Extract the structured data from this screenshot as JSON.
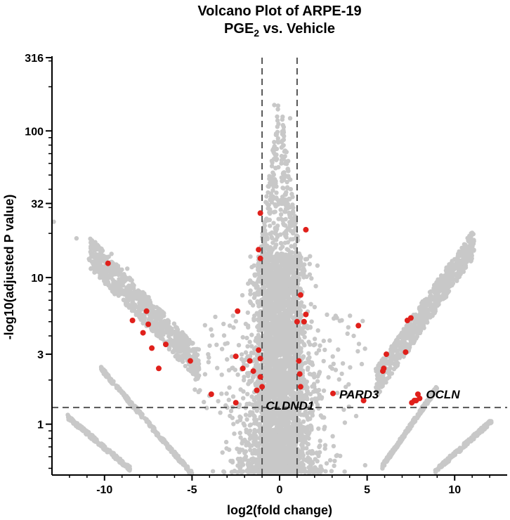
{
  "chart_data": {
    "type": "scatter",
    "title_line1": "Volcano Plot of ARPE-19",
    "title_line2_main": "PGE",
    "title_line2_sub": "2",
    "title_line2_rest": " vs. Vehicle",
    "xlabel": "log2(fold change)",
    "ylabel": "-log10(adjusted P value)",
    "xlim": [
      -13,
      13
    ],
    "ylim": [
      0.45,
      316
    ],
    "y_scale": "log",
    "x_ticks": [
      -10,
      -5,
      0,
      5,
      10
    ],
    "x_tick_labels": [
      "-10",
      "-5",
      "0",
      "5",
      "10"
    ],
    "y_ticks": [
      1,
      3,
      10,
      32,
      100,
      316
    ],
    "y_tick_labels": [
      "1",
      "3",
      "10",
      "32",
      "100",
      "316"
    ],
    "thresholds": {
      "x": [
        -1,
        1
      ],
      "y": 1.3
    },
    "colors": {
      "background": "#c8c8c8",
      "highlight": "#e0201b",
      "threshold": "#555555",
      "axis": "#000000"
    },
    "annotations": [
      {
        "label": "CLDND1",
        "x": -0.95,
        "y": 1.34
      },
      {
        "label": "PARD3",
        "x": 3.25,
        "y": 1.6
      },
      {
        "label": "OCLN",
        "x": 8.2,
        "y": 1.6
      }
    ],
    "highlighted": [
      [
        -9.8,
        12.5
      ],
      [
        -8.4,
        5.1
      ],
      [
        -7.6,
        5.9
      ],
      [
        -7.5,
        4.8
      ],
      [
        -7.8,
        4.2
      ],
      [
        -7.3,
        3.3
      ],
      [
        -6.9,
        2.4
      ],
      [
        -6.5,
        3.5
      ],
      [
        -5.1,
        2.7
      ],
      [
        -3.9,
        1.6
      ],
      [
        -2.5,
        2.9
      ],
      [
        -2.4,
        5.9
      ],
      [
        -2.1,
        2.4
      ],
      [
        -1.7,
        2.7
      ],
      [
        -1.5,
        2.3
      ],
      [
        -1.3,
        1.7
      ],
      [
        -1.2,
        3.2
      ],
      [
        -1.1,
        2.8
      ],
      [
        -1.1,
        2.1
      ],
      [
        -1.0,
        1.8
      ],
      [
        -1.2,
        15.5
      ],
      [
        -1.1,
        13.5
      ],
      [
        -1.1,
        27.5
      ],
      [
        -2.5,
        1.4
      ],
      [
        1.0,
        5.0
      ],
      [
        1.1,
        2.7
      ],
      [
        1.15,
        2.2
      ],
      [
        1.2,
        1.8
      ],
      [
        1.2,
        7.6
      ],
      [
        1.5,
        5.6
      ],
      [
        1.4,
        5.0
      ],
      [
        1.5,
        21.2
      ],
      [
        3.05,
        1.62
      ],
      [
        4.5,
        4.7
      ],
      [
        4.8,
        1.45
      ],
      [
        5.9,
        2.3
      ],
      [
        5.95,
        2.4
      ],
      [
        6.1,
        3.0
      ],
      [
        7.2,
        3.1
      ],
      [
        7.3,
        5.1
      ],
      [
        7.5,
        5.3
      ],
      [
        7.55,
        1.4
      ],
      [
        7.7,
        1.45
      ],
      [
        7.8,
        1.45
      ],
      [
        7.9,
        1.6
      ],
      [
        8.0,
        1.5
      ]
    ]
  }
}
